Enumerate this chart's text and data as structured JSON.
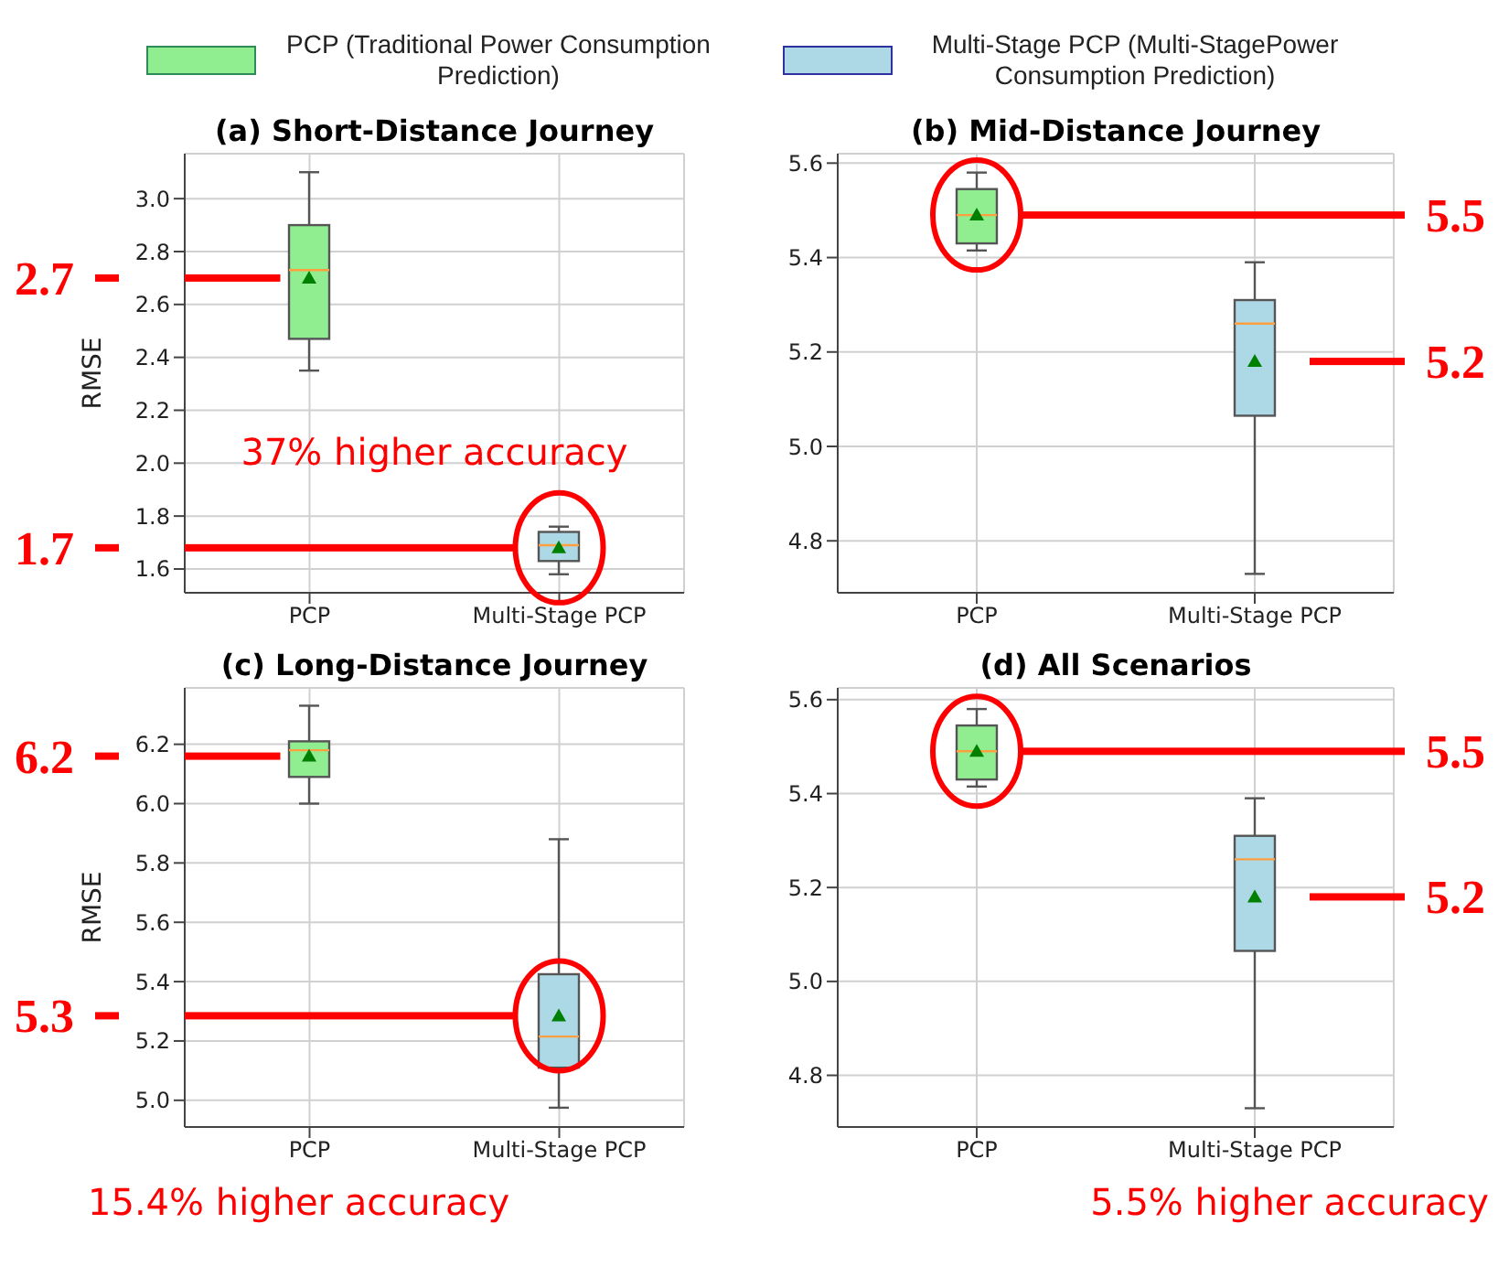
{
  "chart_data": [
    {
      "type": "box",
      "title": "(a) Short-Distance Journey",
      "ylabel": "RMSE",
      "categories": [
        "PCP",
        "Multi-Stage PCP"
      ],
      "legend": "top",
      "grid": true,
      "series": [
        {
          "name": "PCP (Traditional Power Consumption Prediction)",
          "color": "#90ee90",
          "boxes": [
            {
              "low": 2.35,
              "q1": 2.47,
              "median": 2.73,
              "q3": 2.9,
              "high": 3.1,
              "mean": 2.7
            },
            null
          ]
        },
        {
          "name": "Multi-Stage PCP (Multi-StagePower Consumption Prediction)",
          "color": "#add8e6",
          "boxes": [
            null,
            {
              "low": 1.58,
              "q1": 1.63,
              "median": 1.69,
              "q3": 1.74,
              "high": 1.76,
              "mean": 1.68
            }
          ]
        }
      ],
      "ylim": [
        1.51,
        3.17
      ],
      "yticks": [
        1.6,
        1.8,
        {
          "value": 2,
          "label": "2.0"
        },
        2.2,
        2.4,
        2.6,
        2.8,
        {
          "value": 3,
          "label": "3.0"
        }
      ],
      "annotations": [
        "2.7",
        "1.7",
        "37% higher accuracy"
      ]
    },
    {
      "type": "box",
      "title": "(b) Mid-Distance Journey",
      "categories": [
        "PCP",
        "Multi-Stage PCP"
      ],
      "grid": true,
      "series": [
        {
          "color": "#90ee90",
          "boxes": [
            {
              "low": 5.415,
              "q1": 5.43,
              "median": 5.49,
              "q3": 5.545,
              "high": 5.58,
              "mean": 5.49
            },
            null
          ]
        },
        {
          "color": "#add8e6",
          "boxes": [
            null,
            {
              "low": 4.73,
              "q1": 5.065,
              "median": 5.26,
              "q3": 5.31,
              "high": 5.39,
              "mean": 5.18
            }
          ]
        }
      ],
      "ylim": [
        4.69,
        5.62
      ],
      "yticks": [
        4.8,
        {
          "value": 5,
          "label": "5.0"
        },
        5.2,
        5.4,
        5.6
      ],
      "annotations": [
        "5.5",
        "5.2"
      ]
    },
    {
      "type": "box",
      "title": "(c) Long-Distance Journey",
      "ylabel": "RMSE",
      "categories": [
        "PCP",
        "Multi-Stage PCP"
      ],
      "grid": true,
      "series": [
        {
          "color": "#90ee90",
          "boxes": [
            {
              "low": 6.0,
              "q1": 6.09,
              "median": 6.18,
              "q3": 6.21,
              "high": 6.33,
              "mean": 6.16
            },
            null
          ]
        },
        {
          "color": "#add8e6",
          "boxes": [
            null,
            {
              "low": 4.975,
              "q1": 5.11,
              "median": 5.215,
              "q3": 5.425,
              "high": 5.88,
              "mean": 5.285
            }
          ]
        }
      ],
      "ylim": [
        4.91,
        6.39
      ],
      "yticks": [
        {
          "value": 5,
          "label": "5.0"
        },
        5.2,
        5.4,
        5.6,
        5.8,
        {
          "value": 6,
          "label": "6.0"
        },
        6.2
      ],
      "annotations": [
        "6.2",
        "5.3",
        "15.4% higher accuracy"
      ]
    },
    {
      "type": "box",
      "title": "(d) All Scenarios",
      "categories": [
        "PCP",
        "Multi-Stage PCP"
      ],
      "grid": true,
      "series": [
        {
          "color": "#90ee90",
          "boxes": [
            {
              "low": 5.415,
              "q1": 5.43,
              "median": 5.49,
              "q3": 5.545,
              "high": 5.58,
              "mean": 5.49
            },
            null
          ]
        },
        {
          "color": "#add8e6",
          "boxes": [
            null,
            {
              "low": 4.73,
              "q1": 5.065,
              "median": 5.26,
              "q3": 5.31,
              "high": 5.39,
              "mean": 5.18
            }
          ]
        }
      ],
      "ylim": [
        4.69,
        5.625
      ],
      "yticks": [
        4.8,
        {
          "value": 5,
          "label": "5.0"
        },
        5.2,
        5.4,
        5.6
      ],
      "annotations": [
        "5.5",
        "5.2",
        "5.5% higher accuracy"
      ]
    }
  ]
}
